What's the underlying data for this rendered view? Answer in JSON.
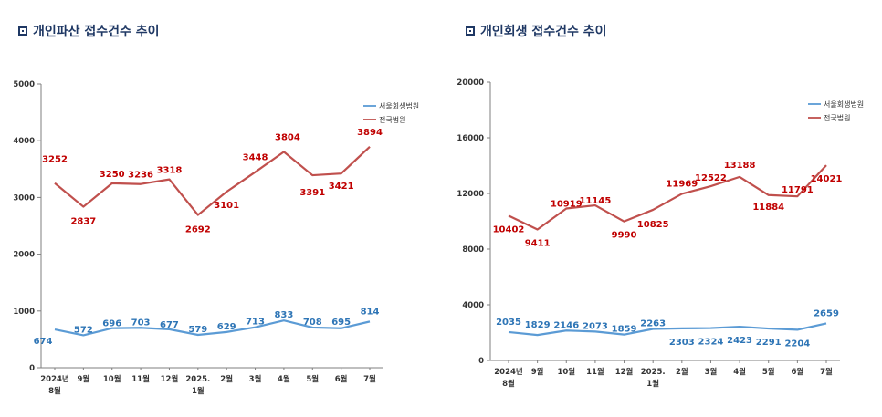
{
  "chart_data": [
    {
      "type": "line",
      "title": "개인파산 접수건수 추이",
      "categories": [
        "2024년 8월",
        "9월",
        "10월",
        "11월",
        "12월",
        "2025. 1월",
        "2월",
        "3월",
        "4월",
        "5월",
        "6월",
        "7월"
      ],
      "category_lines": [
        [
          "2024년",
          "8월"
        ],
        [
          "9월"
        ],
        [
          "10월"
        ],
        [
          "11월"
        ],
        [
          "12월"
        ],
        [
          "2025.",
          "1월"
        ],
        [
          "2월"
        ],
        [
          "3월"
        ],
        [
          "4월"
        ],
        [
          "5월"
        ],
        [
          "6월"
        ],
        [
          "7월"
        ]
      ],
      "ylim": [
        0,
        5000
      ],
      "yticks": [
        "0",
        "1000",
        "2000",
        "3000",
        "4000",
        "5000"
      ],
      "legend_position": "top-right",
      "series": [
        {
          "name": "서울회생법원",
          "color": "#5b9bd5",
          "label_color": "#2e75b6",
          "values": [
            674,
            572,
            696,
            703,
            677,
            579,
            629,
            713,
            833,
            708,
            695,
            814
          ]
        },
        {
          "name": "전국법원",
          "color": "#c0504d",
          "label_color": "#c00000",
          "values": [
            3252,
            2837,
            3250,
            3236,
            3318,
            2692,
            3101,
            3448,
            3804,
            3391,
            3421,
            3894
          ]
        }
      ]
    },
    {
      "type": "line",
      "title": "개인회생 접수건수 추이",
      "categories": [
        "2024년 8월",
        "9월",
        "10월",
        "11월",
        "12월",
        "2025. 1월",
        "2월",
        "3월",
        "4월",
        "5월",
        "6월",
        "7월"
      ],
      "category_lines": [
        [
          "2024년",
          "8월"
        ],
        [
          "9월"
        ],
        [
          "10월"
        ],
        [
          "11월"
        ],
        [
          "12월"
        ],
        [
          "2025.",
          "1월"
        ],
        [
          "2월"
        ],
        [
          "3월"
        ],
        [
          "4월"
        ],
        [
          "5월"
        ],
        [
          "6월"
        ],
        [
          "7월"
        ]
      ],
      "ylim": [
        0,
        20000
      ],
      "yticks": [
        "0",
        "4000",
        "8000",
        "12000",
        "16000",
        "20000"
      ],
      "legend_position": "top-right",
      "series": [
        {
          "name": "서울회생법원",
          "color": "#5b9bd5",
          "label_color": "#2e75b6",
          "values": [
            2035,
            1829,
            2146,
            2073,
            1859,
            2263,
            2303,
            2324,
            2423,
            2291,
            2204,
            2659
          ]
        },
        {
          "name": "전국법원",
          "color": "#c0504d",
          "label_color": "#c00000",
          "values": [
            10402,
            9411,
            10919,
            11145,
            9990,
            10825,
            11969,
            12522,
            13188,
            11884,
            11791,
            14021
          ]
        }
      ]
    }
  ]
}
